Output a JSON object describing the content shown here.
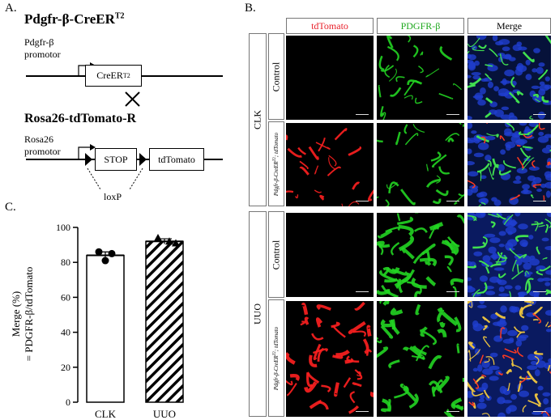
{
  "panelA": {
    "label": "A.",
    "construct1_title": "Pdgfr-β-CreER",
    "construct1_title_sup": "T2",
    "promoter1_line1": "Pdgfr-β",
    "promoter1_line2": "promotor",
    "cre_box": "CreER",
    "cre_box_sup": "T2",
    "cross": "×",
    "construct2_title": "Rosa26-tdTomato-R",
    "promoter2_line1": "Rosa26",
    "promoter2_line2": "promotor",
    "stop_box": "STOP",
    "tdtomato_box": "tdTomato",
    "loxp": "loxP"
  },
  "panelB": {
    "label": "B.",
    "columns": [
      "tdTomato",
      "PDGFR-β",
      "Merge"
    ],
    "column_colors": [
      "#e8202a",
      "#1ea81e",
      "#000000"
    ],
    "groups": [
      "CLK",
      "UUO"
    ],
    "rows": [
      "Control",
      "Pdgfr-β-CreERT2; tdTomato",
      "Control",
      "Pdgfr-β-CreERT2; tdTomato"
    ],
    "row_label_control": "Control",
    "row_label_transgenic_a": "Pdgfr-β-CreER",
    "row_label_transgenic_sup": "T2",
    "row_label_transgenic_b": "; tdTomato"
  },
  "panelC": {
    "label": "C.",
    "ylabel_line1": "Merge (%)",
    "ylabel_line2": "= PDGFR-β/tdTomato"
  },
  "chart_data": {
    "type": "bar",
    "categories": [
      "CLK",
      "UUO"
    ],
    "values": [
      84,
      92
    ],
    "errors": [
      2,
      1.5
    ],
    "points": [
      [
        86,
        85,
        81
      ],
      [
        94,
        92,
        91
      ]
    ],
    "point_markers": [
      "circle",
      "triangle"
    ],
    "bar_fill": [
      "white",
      "hatched"
    ],
    "yticks": [
      0,
      20,
      40,
      60,
      80,
      100
    ],
    "ylim": [
      0,
      100
    ],
    "title": "",
    "xlabel": ""
  }
}
